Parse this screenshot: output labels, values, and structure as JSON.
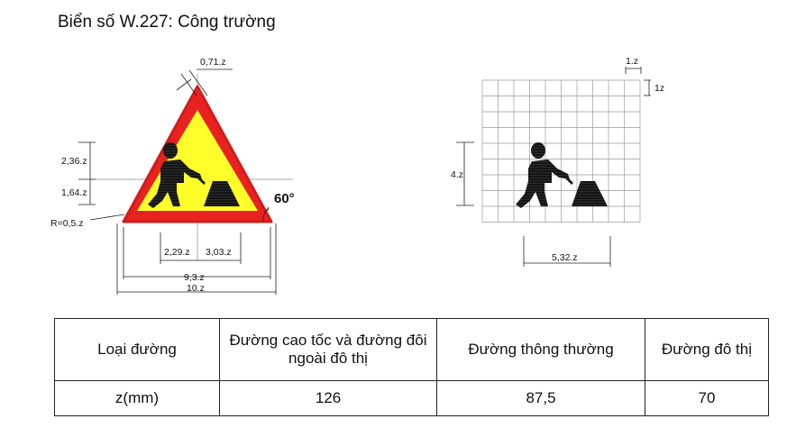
{
  "title": "Biển số W.227: Công trường",
  "sign_dims": {
    "top_offset": "0,71.z",
    "h_upper": "2,36.z",
    "h_lower": "1,64.z",
    "radius": "R=0,5.z",
    "angle": "60°",
    "w_left": "2,29.z",
    "w_right": "3,03.z",
    "w_inner": "9,3.z",
    "w_outer": "10.z"
  },
  "grid_dims": {
    "cell_w": "1.z",
    "cell_h": "1z",
    "height": "4.z",
    "width": "5,32.z"
  },
  "colors": {
    "border": "#e8231f",
    "fill": "#ffff2a",
    "symbol": "#151515"
  },
  "table": {
    "headers": [
      "Loại đường",
      "Đường cao tốc và đường đôi ngoài đô thị",
      "Đường thông thường",
      "Đường đô thị"
    ],
    "row_label": "z(mm)",
    "values": [
      "126",
      "87,5",
      "70"
    ]
  }
}
